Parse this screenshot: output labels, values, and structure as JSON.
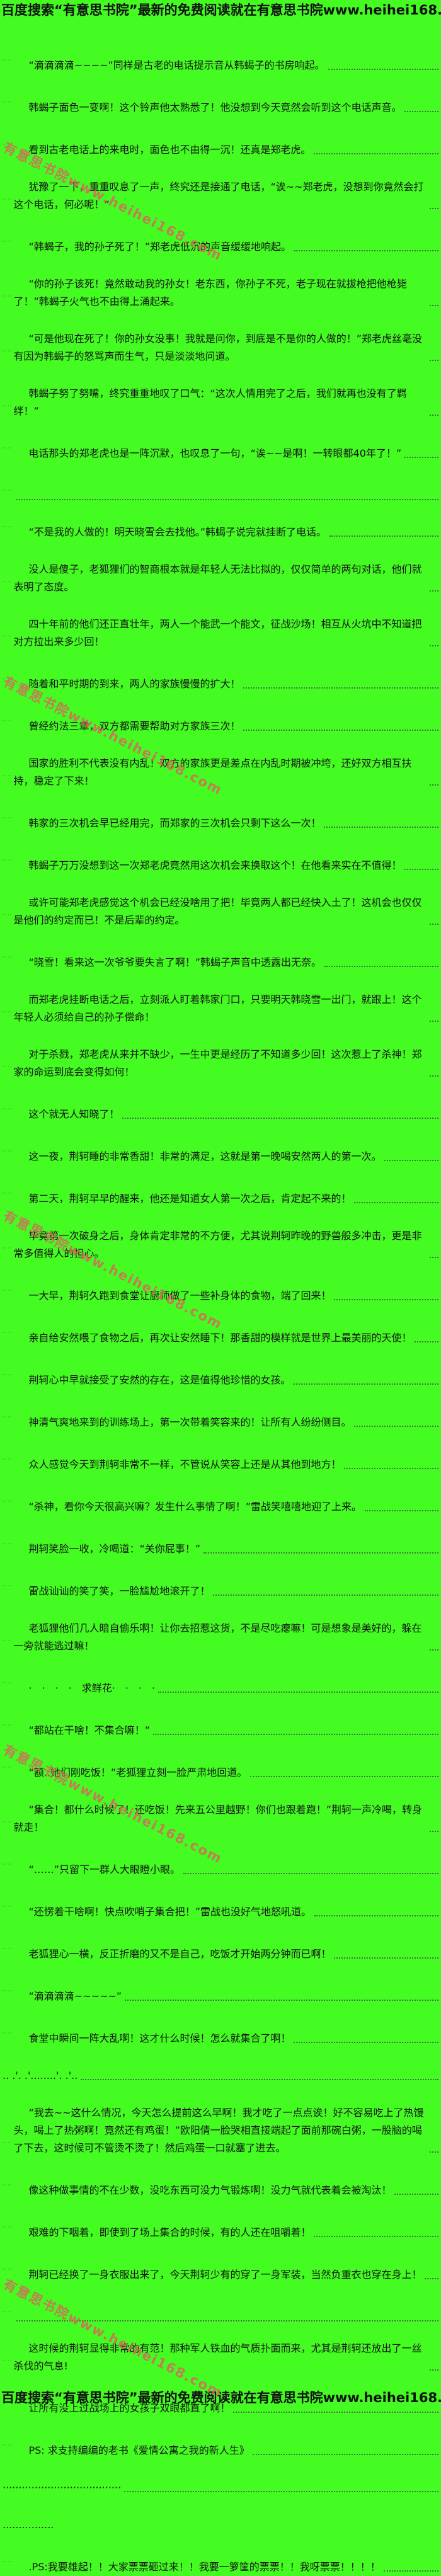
{
  "page": {
    "background_color": "#44FB22",
    "text_color": "#141414",
    "header_text": "百度搜索“有意思书院”最新的免费阅读就在有意思书院www.heihei168.com",
    "footer_text": "百度搜索“有意思书院”最新的免费阅读就在有意思书院www.heihei168.com",
    "watermark_text": "有意思书院www.heihei168.com",
    "watermark_color": "#E06060"
  },
  "paragraphs": [
    {
      "text": "“滴滴滴滴~~~~”同样是古老的电话提示音从韩蝎子的书房响起。",
      "leader": true
    },
    {
      "text": "韩蝎子面色一变啊！这个铃声他太熟悉了！他没想到今天竟然会听到这个电话声音。",
      "leader": true
    },
    {
      "text": "看到古老电话上的来电时，面色也不由得一沉！还真是郑老虎。",
      "leader": true
    },
    {
      "text": "犹豫了一下，重重叹息了一声，终究还是接通了电话，“诶~~郑老虎，没想到你竟然会打这个电话，何必呢！”",
      "leader": true
    },
    {
      "text": "“韩蝎子，我的孙子死了！”郑老虎低沉的声音缓缓地响起。",
      "leader": true
    },
    {
      "text": "“你的孙子该死！竟然敢动我的孙女！老东西，你孙子不死，老子现在就拔枪把他枪毙了！”韩蝎子火气也不由得上涌起来。",
      "leader": true
    },
    {
      "text": "“可是他现在死了！你的孙女没事！我就是问你，到底是不是你的人做的！”郑老虎丝毫没有因为韩蝎子的怒骂声而生气，只是淡淡地问道。",
      "leader": true
    },
    {
      "text": "韩蝎子努了努嘴，终究重重地叹了口气：“这次人情用完了之后，我们就再也没有了羁绊！”",
      "leader": true
    },
    {
      "text": "电话那头的郑老虎也是一阵沉默，也叹息了一句，“诶~~是啊！一转眼都40年了！”",
      "leader": true
    },
    {
      "text": "",
      "leader": true
    },
    {
      "text": "“不是我的人做的！明天晓雪会去找他。”韩蝎子说完就挂断了电话。",
      "leader": true
    },
    {
      "text": "没人是傻子，老狐狸们的智商根本就是年轻人无法比拟的，仅仅简单的两句对话，他们就表明了态度。",
      "leader": true
    },
    {
      "text": "四十年前的他们还正直壮年，两人一个能武一个能文，征战沙场！相互从火坑中不知道把对方拉出来多少回！",
      "leader": true
    },
    {
      "text": "随着和平时期的到来，两人的家族慢慢的扩大！",
      "leader": true
    },
    {
      "text": "曾经约法三章，双方都需要帮助对方家族三次！",
      "leader": true
    },
    {
      "text": "国家的胜利不代表没有内乱！双方的家族更是差点在内乱时期被冲垮，还好双方相互扶持，稳定了下来！",
      "leader": true
    },
    {
      "text": "韩家的三次机会早已经用完，而郑家的三次机会只剩下这么一次！",
      "leader": true
    },
    {
      "text": "韩蝎子万万没想到这一次郑老虎竟然用这次机会来换取这个！在他看来实在不值得！",
      "leader": true
    },
    {
      "text": "或许可能郑老虎感觉这个机会已经没啥用了把！毕竟两人都已经快入土了！这机会也仅仅是他们的约定而已！不是后辈的约定。",
      "leader": true
    },
    {
      "text": "“晓雪！看来这一次爷爷要失言了啊！”韩蝎子声音中透露出无奈。",
      "leader": true
    },
    {
      "text": "而郑老虎挂断电话之后，立刻派人盯着韩家门口，只要明天韩晓雪一出门，就跟上！这个年轻人必须给自己的孙子偿命！",
      "leader": true
    },
    {
      "text": "对于杀戮，郑老虎从来并不缺少，一生中更是经历了不知道多少回！这次惹上了杀神！郑家的命运到底会变得如何！",
      "leader": true
    },
    {
      "text": "这个就无人知晓了！",
      "leader": true
    },
    {
      "text": "这一夜，荆轲睡的非常香甜！非常的满足，这就是第一晚喝安然两人的第一次。",
      "leader": true
    },
    {
      "text": "第二天，荆轲早早的醒来，他还是知道女人第一次之后，肯定起不来的！",
      "leader": true
    },
    {
      "text": "毕竟第一次破身之后，身体肯定非常的不方便，尤其说荆轲昨晚的野兽般多冲击，更是非常多值得人的担心。",
      "leader": true
    },
    {
      "text": "一大早，荆轲久跑到食堂让厨师做了一些补身体的食物，端了回来！",
      "leader": true
    },
    {
      "text": "亲自给安然喂了食物之后，再次让安然睡下！那香甜的模样就是世界上最美丽的天使！",
      "leader": true
    },
    {
      "text": "荆轲心中早就接受了安然的存在，这是值得他珍惜的女孩。",
      "leader": true
    },
    {
      "text": "神清气爽地来到的训练场上，第一次带着笑容来的！让所有人纷纷侧目。",
      "leader": true
    },
    {
      "text": "众人感觉今天到荆轲非常不一样，不管说从笑容上还是从其他到地方！",
      "leader": true
    },
    {
      "text": "“杀神，看你今天很高兴嘛？发生什么事情了啊！”雷战笑嘻嘻地迎了上来。",
      "leader": true
    },
    {
      "text": "荆轲笑脸一收，冷喝道：“关你屁事！”",
      "leader": true
    },
    {
      "text": "雷战讪讪的笑了笑，一脸尴尬地滚开了！",
      "leader": true
    },
    {
      "text": "老狐狸他们几人暗自偷乐啊！让你去招惹这货，不是尽吃瘪嘛！可是想象是美好的，躲在一旁就能逃过嘛！",
      "leader": true
    },
    {
      "text": "·　·　·　·　求鲜花·　·　·　·",
      "leader": true
    },
    {
      "text": "“都站在干啥！不集合嘛！”",
      "leader": true
    },
    {
      "text": "“额..她们刚吃饭！”老狐狸立刻一脸严肃地回道。",
      "leader": true
    },
    {
      "text": "“集合！都什么时候了！还吃饭！先来五公里越野！你们也跟着跑！”荆轲一声冷喝，转身就走！",
      "leader": true
    },
    {
      "text": "“……”只留下一群人大眼瞪小眼。",
      "leader": true
    },
    {
      "text": "“还愣着干啥啊！快点吹哨子集合把！”雷战也没好气地怒吼道。",
      "leader": true
    },
    {
      "text": "老狐狸心一横，反正折磨的又不是自己，吃饭才开始两分钟而已啊！",
      "leader": true
    },
    {
      "text": "“滴滴滴滴~~~~~”",
      "leader": true
    },
    {
      "text": "食堂中瞬间一阵大乱啊！这才什么时候！怎么就集合了啊！",
      "leader": true
    },
    {
      "text": ".. .'. .'........'. .'..",
      "leader": true,
      "indent": false
    },
    {
      "text": "“我去~~这什么情况，今天怎么提前这么早啊！我才吃了一点点诶！好不容易吃上了热馒头，喝上了热粥啊！竟然还有鸡蛋！”欧阳倩一脸哭相直接端起了面前那碗白粥，一股脑的喝了下去，这时候可不管烫不烫了！然后鸡蛋一口就塞了进去。",
      "leader": true
    },
    {
      "text": "像这种做事情的不在少数，没吃东西可没力气锻炼啊！没力气就代表着会被淘汰！",
      "leader": true
    },
    {
      "text": "艰难的下咽着，即使到了场上集合的时候，有的人还在咀嚼着！",
      "leader": true
    },
    {
      "text": "荆轲已经换了一身衣服出来了，今天荆轲少有的穿了一身军装，当然负重衣也穿在身上！",
      "leader": true
    },
    {
      "text": "",
      "leader": true
    },
    {
      "text": "这时候的荆轲显得非常的有范！那种军人铁血的气质扑面而来，尤其是荆轲还放出了一丝杀伐的气息!",
      "leader": true
    },
    {
      "text": "让所有没上过战场上的女孩子双眼都直了啊！",
      "leader": true
    },
    {
      "text": "PS: 求支持编编的老书《爱情公寓之我的新人生》",
      "leader": true
    },
    {
      "text": "·····································",
      "leader": true,
      "indent": false
    },
    {
      "text": "................",
      "leader": false,
      "indent": false
    },
    {
      "text": ".PS:我要雄起！！大家票票砸过来！！我要一箩筐的票票！！我呀票票！！！！",
      "leader": true
    }
  ]
}
